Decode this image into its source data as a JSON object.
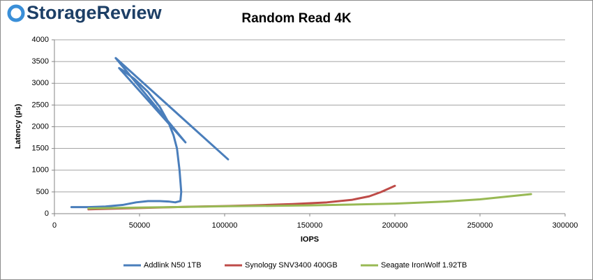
{
  "logo": {
    "text": "StorageReview"
  },
  "chart_data": {
    "type": "line",
    "title": "Random Read 4K",
    "xlabel": "IOPS",
    "ylabel": "Latency (µs)",
    "xlim": [
      0,
      300000
    ],
    "xticks": [
      0,
      50000,
      100000,
      150000,
      200000,
      250000,
      300000
    ],
    "ylim": [
      0,
      4000
    ],
    "yticks": [
      0,
      500,
      1000,
      1500,
      2000,
      2500,
      3000,
      3500,
      4000
    ],
    "grid": true,
    "legend": "bottom",
    "series": [
      {
        "name": "Addlink N50 1TB",
        "color": "#4a7ebb",
        "x": [
          10000,
          20000,
          30000,
          40000,
          48000,
          55000,
          62000,
          67000,
          71000,
          74000,
          74500,
          73500,
          72000,
          70000,
          67000,
          62000,
          55000,
          47000,
          40000,
          38000,
          77000,
          36000,
          102000
        ],
        "values": [
          150,
          150,
          165,
          200,
          260,
          290,
          290,
          280,
          260,
          290,
          500,
          1000,
          1500,
          1800,
          2100,
          2450,
          2800,
          3100,
          3300,
          3350,
          1640,
          3580,
          1250
        ]
      },
      {
        "name": "Synology SNV3400 400GB",
        "color": "#be4b48",
        "x": [
          20000,
          40000,
          60000,
          80000,
          100000,
          120000,
          140000,
          160000,
          175000,
          185000,
          192000,
          200000
        ],
        "values": [
          100,
          120,
          140,
          160,
          175,
          195,
          220,
          260,
          320,
          400,
          500,
          640
        ]
      },
      {
        "name": "Seagate IronWolf 1.92TB",
        "color": "#98b954",
        "x": [
          20000,
          50000,
          100000,
          150000,
          200000,
          230000,
          250000,
          265000,
          280000
        ],
        "values": [
          120,
          140,
          170,
          190,
          230,
          280,
          330,
          390,
          450
        ]
      }
    ]
  }
}
